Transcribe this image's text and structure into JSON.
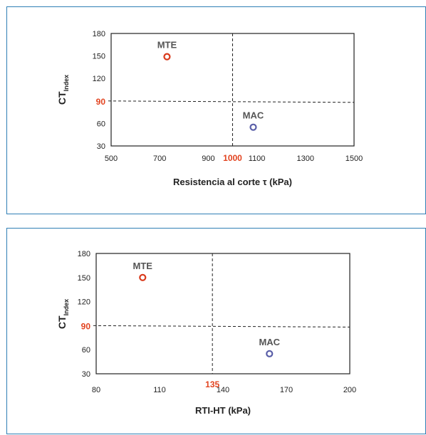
{
  "colors": {
    "panel_border": "#2f7fb5",
    "highlight": "#e2431f",
    "mte": "#d93a1c",
    "mac": "#5a5fa8",
    "frame": "#222222"
  },
  "chart_data": [
    {
      "type": "scatter",
      "xlabel": "Resistencia al corte τ (kPa)",
      "ylabel_main": "CT",
      "ylabel_sub": "Index",
      "xlim": [
        500,
        1500
      ],
      "ylim": [
        30,
        180
      ],
      "xticks": [
        500,
        700,
        900,
        1100,
        1300,
        1500
      ],
      "yticks": [
        30,
        60,
        90,
        120,
        150,
        180
      ],
      "x_threshold": 1000,
      "y_threshold": 90,
      "x_threshold_label": "1000",
      "y_threshold_label": "90",
      "points": [
        {
          "label": "MTE",
          "x": 730,
          "y": 149,
          "color": "#d93a1c"
        },
        {
          "label": "MAC",
          "x": 1085,
          "y": 55,
          "color": "#5a5fa8"
        }
      ],
      "grid": false
    },
    {
      "type": "scatter",
      "xlabel": "RTI-HT (kPa)",
      "ylabel_main": "CT",
      "ylabel_sub": "Index",
      "xlim": [
        80,
        200
      ],
      "ylim": [
        30,
        180
      ],
      "xticks": [
        80,
        110,
        140,
        170,
        200
      ],
      "yticks": [
        30,
        60,
        90,
        120,
        150,
        180
      ],
      "x_threshold": 135,
      "y_threshold": 90,
      "x_threshold_label": "135",
      "y_threshold_label": "90",
      "points": [
        {
          "label": "MTE",
          "x": 102,
          "y": 150,
          "color": "#d93a1c"
        },
        {
          "label": "MAC",
          "x": 162,
          "y": 55,
          "color": "#5a5fa8"
        }
      ],
      "grid": false
    }
  ]
}
